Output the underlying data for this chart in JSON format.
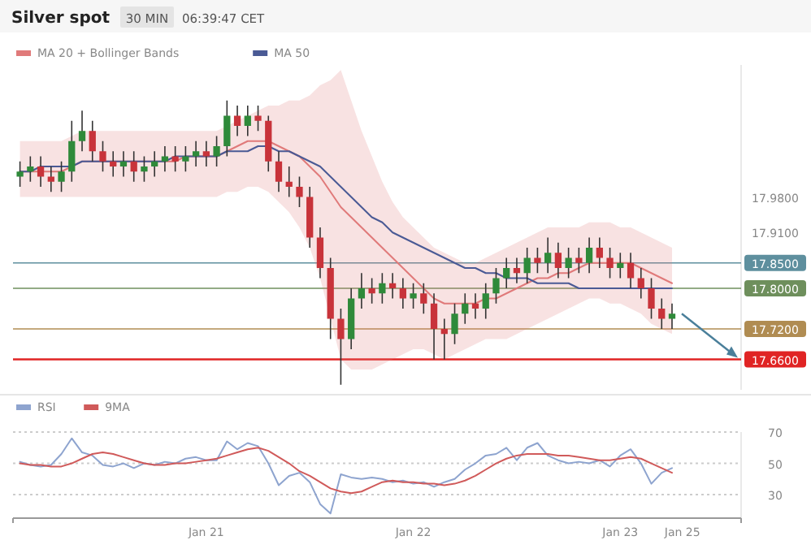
{
  "chart_data": [
    {
      "type": "candlestick",
      "title": "Silver spot",
      "annotations": [
        "30 MIN",
        "06:39:47 CET"
      ],
      "categories": [
        null,
        null,
        null,
        null,
        null,
        null,
        null,
        null,
        null,
        null,
        null,
        null,
        null,
        null,
        null,
        null,
        null,
        null,
        null,
        null,
        null,
        null,
        null,
        null,
        null,
        null,
        null,
        null,
        null,
        null,
        null,
        null,
        null,
        null,
        null,
        null,
        null,
        null,
        null,
        null,
        null,
        null,
        null,
        null,
        null,
        null,
        null,
        null,
        null,
        null,
        null,
        null,
        null,
        null,
        null,
        null,
        null,
        null,
        null,
        null,
        null,
        null,
        null,
        null,
        null,
        null,
        null,
        null,
        null,
        null
      ],
      "ohlc": [
        [
          18.02,
          18.05,
          18.0,
          18.03
        ],
        [
          18.03,
          18.06,
          18.01,
          18.04
        ],
        [
          18.04,
          18.06,
          18.0,
          18.02
        ],
        [
          18.02,
          18.04,
          17.99,
          18.01
        ],
        [
          18.01,
          18.05,
          17.99,
          18.03
        ],
        [
          18.03,
          18.13,
          18.01,
          18.09
        ],
        [
          18.09,
          18.15,
          18.07,
          18.11
        ],
        [
          18.11,
          18.13,
          18.05,
          18.07
        ],
        [
          18.07,
          18.09,
          18.03,
          18.05
        ],
        [
          18.05,
          18.07,
          18.02,
          18.04
        ],
        [
          18.04,
          18.07,
          18.02,
          18.05
        ],
        [
          18.05,
          18.07,
          18.01,
          18.03
        ],
        [
          18.03,
          18.06,
          18.01,
          18.04
        ],
        [
          18.04,
          18.07,
          18.02,
          18.05
        ],
        [
          18.05,
          18.08,
          18.03,
          18.06
        ],
        [
          18.06,
          18.08,
          18.03,
          18.05
        ],
        [
          18.05,
          18.08,
          18.03,
          18.06
        ],
        [
          18.06,
          18.09,
          18.04,
          18.07
        ],
        [
          18.07,
          18.09,
          18.04,
          18.06
        ],
        [
          18.06,
          18.1,
          18.04,
          18.08
        ],
        [
          18.08,
          18.17,
          18.06,
          18.14
        ],
        [
          18.14,
          18.16,
          18.1,
          18.12
        ],
        [
          18.12,
          18.16,
          18.1,
          18.14
        ],
        [
          18.14,
          18.16,
          18.11,
          18.13
        ],
        [
          18.13,
          18.14,
          18.03,
          18.05
        ],
        [
          18.05,
          18.07,
          17.99,
          18.01
        ],
        [
          18.01,
          18.04,
          17.98,
          18.0
        ],
        [
          18.0,
          18.02,
          17.96,
          17.98
        ],
        [
          17.98,
          18.0,
          17.88,
          17.9
        ],
        [
          17.9,
          17.92,
          17.82,
          17.84
        ],
        [
          17.84,
          17.86,
          17.7,
          17.74
        ],
        [
          17.74,
          17.76,
          17.61,
          17.7
        ],
        [
          17.7,
          17.8,
          17.68,
          17.78
        ],
        [
          17.78,
          17.83,
          17.76,
          17.8
        ],
        [
          17.8,
          17.82,
          17.77,
          17.79
        ],
        [
          17.79,
          17.83,
          17.77,
          17.81
        ],
        [
          17.81,
          17.83,
          17.78,
          17.8
        ],
        [
          17.8,
          17.82,
          17.76,
          17.78
        ],
        [
          17.78,
          17.81,
          17.76,
          17.79
        ],
        [
          17.79,
          17.81,
          17.75,
          17.77
        ],
        [
          17.77,
          17.79,
          17.66,
          17.72
        ],
        [
          17.72,
          17.74,
          17.66,
          17.71
        ],
        [
          17.71,
          17.77,
          17.69,
          17.75
        ],
        [
          17.75,
          17.79,
          17.73,
          17.77
        ],
        [
          17.77,
          17.79,
          17.74,
          17.76
        ],
        [
          17.76,
          17.81,
          17.74,
          17.79
        ],
        [
          17.79,
          17.84,
          17.77,
          17.82
        ],
        [
          17.82,
          17.86,
          17.8,
          17.84
        ],
        [
          17.84,
          17.86,
          17.81,
          17.83
        ],
        [
          17.83,
          17.88,
          17.81,
          17.86
        ],
        [
          17.86,
          17.88,
          17.83,
          17.85
        ],
        [
          17.85,
          17.9,
          17.83,
          17.87
        ],
        [
          17.87,
          17.89,
          17.82,
          17.84
        ],
        [
          17.84,
          17.88,
          17.82,
          17.86
        ],
        [
          17.86,
          17.88,
          17.83,
          17.85
        ],
        [
          17.85,
          17.9,
          17.83,
          17.88
        ],
        [
          17.88,
          17.9,
          17.84,
          17.86
        ],
        [
          17.86,
          17.88,
          17.82,
          17.84
        ],
        [
          17.84,
          17.87,
          17.82,
          17.85
        ],
        [
          17.85,
          17.87,
          17.8,
          17.82
        ],
        [
          17.82,
          17.84,
          17.78,
          17.8
        ],
        [
          17.8,
          17.82,
          17.74,
          17.76
        ],
        [
          17.76,
          17.78,
          17.72,
          17.74
        ],
        [
          17.74,
          17.77,
          17.72,
          17.75
        ],
        null,
        null,
        null,
        null,
        null,
        null
      ],
      "series": [
        {
          "name": "MA 20 + Bollinger Bands",
          "type": "line",
          "color": "#e07a7a",
          "values": [
            18.03,
            18.03,
            18.03,
            18.03,
            18.03,
            18.04,
            18.05,
            18.05,
            18.05,
            18.05,
            18.05,
            18.05,
            18.05,
            18.05,
            18.05,
            18.05,
            18.06,
            18.06,
            18.06,
            18.06,
            18.07,
            18.08,
            18.09,
            18.09,
            18.09,
            18.08,
            18.07,
            18.06,
            18.04,
            18.02,
            17.99,
            17.96,
            17.94,
            17.92,
            17.9,
            17.88,
            17.86,
            17.84,
            17.82,
            17.8,
            17.78,
            17.77,
            17.77,
            17.77,
            17.77,
            17.78,
            17.78,
            17.79,
            17.8,
            17.81,
            17.82,
            17.82,
            17.83,
            17.83,
            17.84,
            17.85,
            17.85,
            17.85,
            17.85,
            17.85,
            17.84,
            17.83,
            17.82,
            17.81,
            null,
            null,
            null,
            null,
            null,
            null
          ],
          "upper": [
            18.09,
            18.09,
            18.09,
            18.09,
            18.09,
            18.1,
            18.11,
            18.11,
            18.11,
            18.11,
            18.11,
            18.11,
            18.11,
            18.11,
            18.11,
            18.11,
            18.11,
            18.11,
            18.11,
            18.11,
            18.12,
            18.13,
            18.14,
            18.15,
            18.16,
            18.16,
            18.17,
            18.17,
            18.18,
            18.2,
            18.21,
            18.23,
            18.17,
            18.11,
            18.06,
            18.01,
            17.97,
            17.94,
            17.92,
            17.9,
            17.88,
            17.87,
            17.86,
            17.85,
            17.85,
            17.86,
            17.87,
            17.88,
            17.89,
            17.9,
            17.91,
            17.92,
            17.92,
            17.92,
            17.92,
            17.93,
            17.93,
            17.93,
            17.92,
            17.92,
            17.91,
            17.9,
            17.89,
            17.88,
            null,
            null,
            null,
            null,
            null,
            null
          ],
          "lower": [
            17.98,
            17.98,
            17.98,
            17.98,
            17.98,
            17.98,
            17.98,
            17.98,
            17.98,
            17.98,
            17.98,
            17.98,
            17.98,
            17.98,
            17.98,
            17.98,
            17.98,
            17.98,
            17.98,
            17.98,
            17.99,
            17.99,
            18.0,
            18.0,
            17.99,
            17.97,
            17.95,
            17.92,
            17.88,
            17.82,
            17.74,
            17.66,
            17.64,
            17.64,
            17.64,
            17.65,
            17.66,
            17.67,
            17.68,
            17.68,
            17.67,
            17.66,
            17.67,
            17.68,
            17.69,
            17.7,
            17.7,
            17.7,
            17.71,
            17.72,
            17.73,
            17.74,
            17.75,
            17.76,
            17.77,
            17.78,
            17.78,
            17.77,
            17.77,
            17.76,
            17.75,
            17.73,
            17.72,
            17.71,
            null,
            null,
            null,
            null,
            null,
            null
          ]
        },
        {
          "name": "MA 50",
          "type": "line",
          "color": "#4a5a95",
          "values": [
            18.03,
            18.03,
            18.04,
            18.04,
            18.04,
            18.04,
            18.05,
            18.05,
            18.05,
            18.05,
            18.05,
            18.05,
            18.05,
            18.05,
            18.05,
            18.06,
            18.06,
            18.06,
            18.06,
            18.06,
            18.07,
            18.07,
            18.07,
            18.08,
            18.08,
            18.07,
            18.07,
            18.06,
            18.05,
            18.04,
            18.02,
            18.0,
            17.98,
            17.96,
            17.94,
            17.93,
            17.91,
            17.9,
            17.89,
            17.88,
            17.87,
            17.86,
            17.85,
            17.84,
            17.84,
            17.83,
            17.83,
            17.82,
            17.82,
            17.82,
            17.81,
            17.81,
            17.81,
            17.81,
            17.8,
            17.8,
            17.8,
            17.8,
            17.8,
            17.8,
            17.8,
            17.8,
            17.8,
            17.8,
            null,
            null,
            null,
            null,
            null,
            null
          ]
        }
      ],
      "ylim": [
        17.6,
        18.24
      ],
      "yticks": [
        {
          "value": 17.98,
          "label": "17.9800"
        },
        {
          "value": 17.91,
          "label": "17.9100"
        }
      ],
      "ref_lines": [
        {
          "axis": "y",
          "value": 17.85,
          "label": "17.8500",
          "color": "#5e8f9e"
        },
        {
          "axis": "y",
          "value": 17.8,
          "label": "17.8000",
          "color": "#6e8f5c"
        },
        {
          "axis": "y",
          "value": 17.72,
          "label": "17.7200",
          "color": "#b08c52"
        },
        {
          "axis": "y",
          "value": 17.66,
          "label": "17.6600",
          "color": "#e02424"
        }
      ],
      "grid": false,
      "legend": "top left",
      "tick_labels": "y"
    },
    {
      "type": "line",
      "categories": [
        null,
        null,
        null,
        null,
        null,
        null,
        null,
        null,
        null,
        null,
        null,
        null,
        null,
        null,
        null,
        null,
        null,
        null,
        "Jan 21",
        null,
        null,
        null,
        null,
        null,
        null,
        null,
        null,
        null,
        null,
        null,
        null,
        null,
        null,
        null,
        null,
        null,
        null,
        null,
        "Jan 22",
        null,
        null,
        null,
        null,
        null,
        null,
        null,
        null,
        null,
        null,
        null,
        null,
        null,
        null,
        null,
        null,
        null,
        null,
        null,
        "Jan 23",
        null,
        null,
        null,
        null,
        null,
        "Jan 25",
        null,
        null,
        null,
        null,
        null
      ],
      "series": [
        {
          "name": "RSI",
          "color": "#8ea4cf",
          "values": [
            51,
            49,
            48,
            49,
            56,
            66,
            57,
            55,
            49,
            48,
            50,
            47,
            50,
            49,
            51,
            50,
            53,
            54,
            52,
            52,
            64,
            59,
            63,
            61,
            50,
            36,
            42,
            44,
            38,
            24,
            18,
            43,
            41,
            40,
            41,
            40,
            38,
            39,
            37,
            38,
            35,
            38,
            40,
            46,
            50,
            55,
            56,
            60,
            52,
            60,
            63,
            55,
            52,
            50,
            51,
            50,
            52,
            48,
            55,
            59,
            50,
            37,
            44,
            47,
            null,
            null,
            null,
            null,
            null,
            null
          ]
        },
        {
          "name": "9MA",
          "color": "#d05a5a",
          "values": [
            50,
            49,
            49,
            48,
            48,
            50,
            53,
            56,
            57,
            56,
            54,
            52,
            50,
            49,
            49,
            50,
            50,
            51,
            52,
            53,
            55,
            57,
            59,
            60,
            58,
            54,
            50,
            45,
            42,
            38,
            34,
            32,
            31,
            32,
            35,
            38,
            39,
            38,
            38,
            37,
            37,
            36,
            37,
            39,
            42,
            46,
            50,
            53,
            55,
            56,
            56,
            56,
            55,
            55,
            54,
            53,
            52,
            52,
            53,
            54,
            53,
            50,
            47,
            44,
            null,
            null,
            null,
            null,
            null,
            null
          ]
        }
      ],
      "ylim": [
        15,
        70
      ],
      "yticks": [
        30,
        50,
        70
      ],
      "grid": "y",
      "legend": "top left"
    }
  ]
}
